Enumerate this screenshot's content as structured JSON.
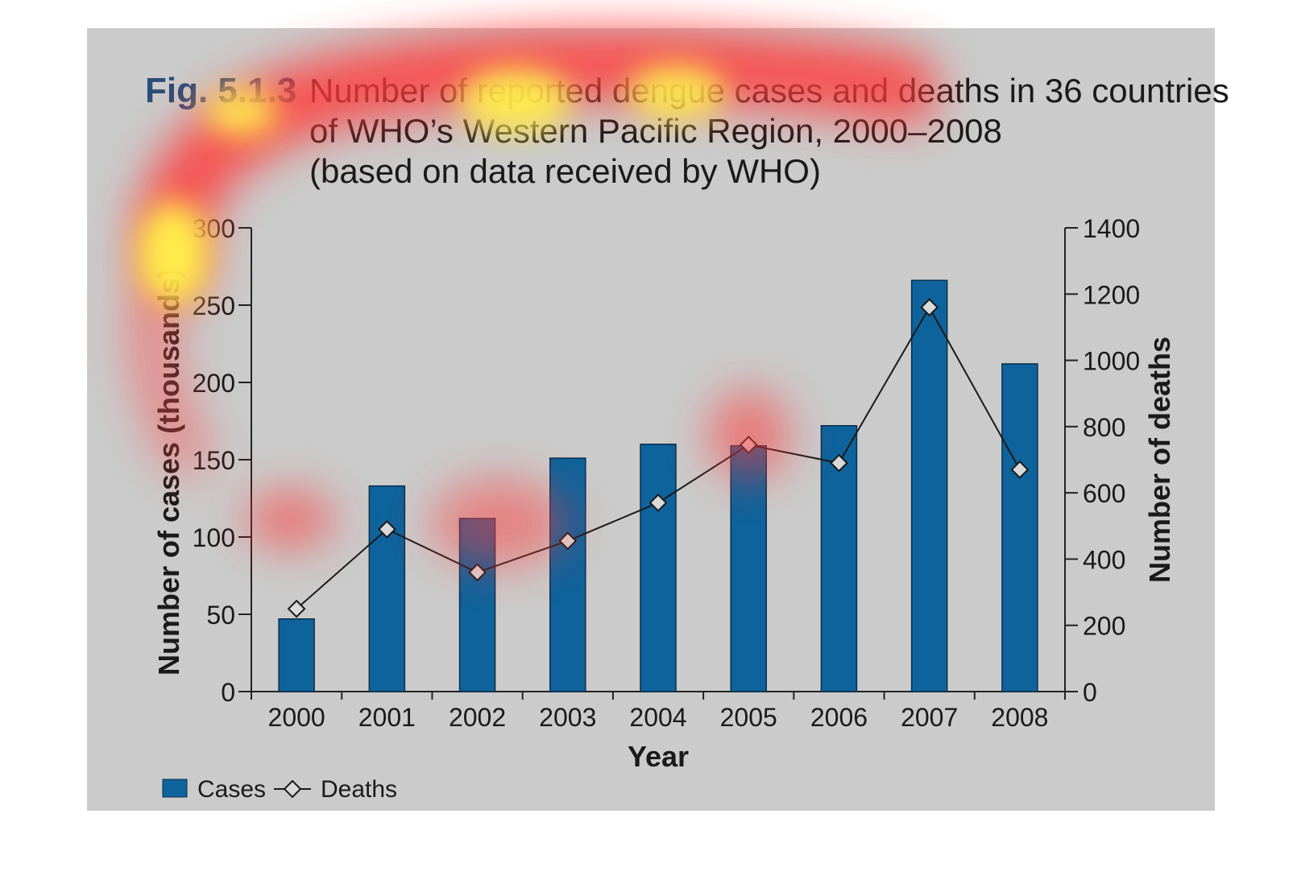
{
  "figure": {
    "label": "Fig. 5.1.3",
    "title_lines": [
      "Number of reported dengue cases and deaths in 36 countries",
      "of WHO’s Western Pacific Region, 2000–2008",
      "(based on data received by WHO)"
    ]
  },
  "colors": {
    "panel": "#cbcbcb",
    "bar": "#0e639c",
    "line": "#1a1a1a",
    "marker_fill": "#d9d9d9",
    "label_blue": "#2b4d7a"
  },
  "chart_data": {
    "type": "bar",
    "title": "Number of reported dengue cases and deaths in 36 countries of WHO’s Western Pacific Region, 2000–2008 (based on data received by WHO)",
    "categories": [
      "2000",
      "2001",
      "2002",
      "2003",
      "2004",
      "2005",
      "2006",
      "2007",
      "2008"
    ],
    "series": [
      {
        "name": "Cases",
        "type": "bar",
        "axis": "left",
        "values": [
          47,
          133,
          112,
          151,
          160,
          159,
          172,
          266,
          212
        ]
      },
      {
        "name": "Deaths",
        "type": "line",
        "axis": "right",
        "values": [
          250,
          490,
          360,
          455,
          570,
          745,
          690,
          1160,
          670
        ]
      }
    ],
    "xlabel": "Year",
    "ylabel": "Number of cases (thousands)",
    "y2label": "Number of deaths",
    "ylim": [
      0,
      300
    ],
    "y2lim": [
      0,
      1400
    ],
    "yticks": [
      "0",
      "50",
      "100",
      "150",
      "200",
      "250",
      "300"
    ],
    "y2ticks": [
      "0",
      "200",
      "400",
      "600",
      "800",
      "1000",
      "1200",
      "1400"
    ],
    "legend": [
      {
        "label": "Cases",
        "symbol": "bar"
      },
      {
        "label": "Deaths",
        "symbol": "line-diamond"
      }
    ],
    "legend_position": "bottom-left",
    "grid": false
  }
}
